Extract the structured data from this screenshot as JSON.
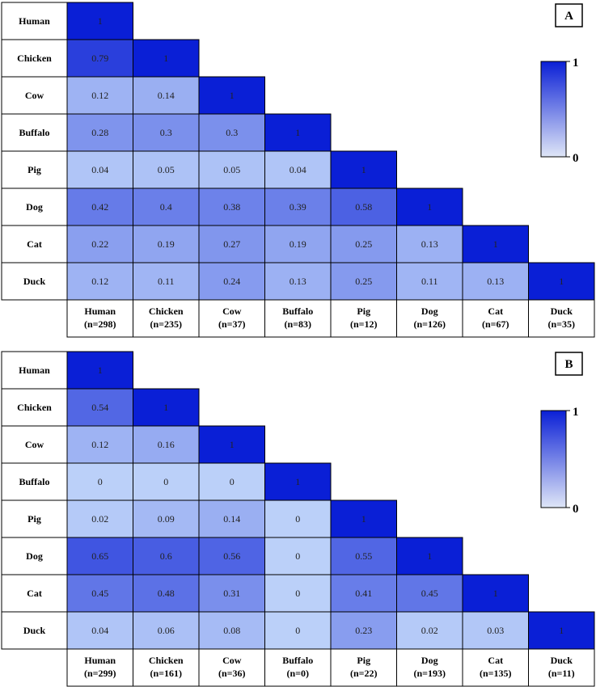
{
  "chart_data": [
    {
      "type": "heatmap",
      "panel_label": "A",
      "row_labels": [
        "Human",
        "Chicken",
        "Cow",
        "Buffalo",
        "Pig",
        "Dog",
        "Cat",
        "Duck"
      ],
      "col_labels": [
        [
          "Human",
          "(n=298)"
        ],
        [
          "Chicken",
          "(n=235)"
        ],
        [
          "Cow",
          "(n=37)"
        ],
        [
          "Buffalo",
          "(n=83)"
        ],
        [
          "Pig",
          "(n=12)"
        ],
        [
          "Dog",
          "(n=126)"
        ],
        [
          "Cat",
          "(n=67)"
        ],
        [
          "Duck",
          "(n=35)"
        ]
      ],
      "values": [
        [
          1
        ],
        [
          0.79,
          1
        ],
        [
          0.12,
          0.14,
          1
        ],
        [
          0.28,
          0.3,
          0.3,
          1
        ],
        [
          0.04,
          0.05,
          0.05,
          0.04,
          1
        ],
        [
          0.42,
          0.4,
          0.38,
          0.39,
          0.58,
          1
        ],
        [
          0.22,
          0.19,
          0.27,
          0.19,
          0.25,
          0.13,
          1
        ],
        [
          0.12,
          0.11,
          0.24,
          0.13,
          0.25,
          0.11,
          0.13,
          1
        ]
      ],
      "color_scale": {
        "min": 0,
        "max": 1,
        "min_label": "0",
        "max_label": "1",
        "min_color": "#dfe6f7",
        "max_color": "#0a1fd6"
      }
    },
    {
      "type": "heatmap",
      "panel_label": "B",
      "row_labels": [
        "Human",
        "Chicken",
        "Cow",
        "Buffalo",
        "Pig",
        "Dog",
        "Cat",
        "Duck"
      ],
      "col_labels": [
        [
          "Human",
          "(n=299)"
        ],
        [
          "Chicken",
          "(n=161)"
        ],
        [
          "Cow",
          "(n=36)"
        ],
        [
          "Buffalo",
          "(n=0)"
        ],
        [
          "Pig",
          "(n=22)"
        ],
        [
          "Dog",
          "(n=193)"
        ],
        [
          "Cat",
          "(n=135)"
        ],
        [
          "Duck",
          "(n=11)"
        ]
      ],
      "values": [
        [
          1
        ],
        [
          0.54,
          1
        ],
        [
          0.12,
          0.16,
          1
        ],
        [
          0,
          0,
          0,
          1
        ],
        [
          0.02,
          0.09,
          0.14,
          0,
          1
        ],
        [
          0.65,
          0.6,
          0.56,
          0,
          0.55,
          1
        ],
        [
          0.45,
          0.48,
          0.31,
          0,
          0.41,
          0.45,
          1
        ],
        [
          0.04,
          0.06,
          0.08,
          0,
          0.23,
          0.02,
          0.03,
          1
        ]
      ],
      "color_scale": {
        "min": 0,
        "max": 1,
        "min_label": "0",
        "max_label": "1",
        "min_color": "#dfe6f7",
        "max_color": "#0a1fd6"
      }
    }
  ]
}
